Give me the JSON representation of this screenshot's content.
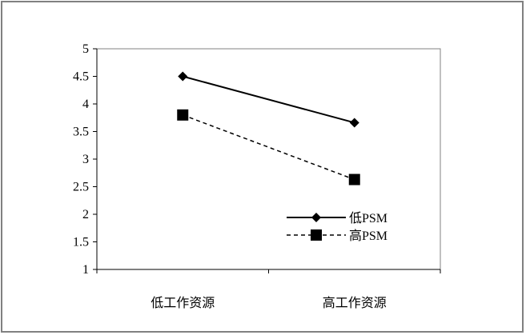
{
  "chart_data": {
    "type": "line",
    "categories": [
      "低工作资源",
      "高工作资源"
    ],
    "series": [
      {
        "name": "低PSM",
        "values": [
          4.5,
          3.66
        ],
        "line_style": "solid",
        "marker": "diamond",
        "color": "#000000"
      },
      {
        "name": "高PSM",
        "values": [
          3.8,
          2.63
        ],
        "line_style": "dashed",
        "marker": "square",
        "color": "#000000"
      }
    ],
    "y_ticks": [
      "1",
      "1.5",
      "2",
      "2.5",
      "3",
      "3.5",
      "4",
      "4.5",
      "5"
    ],
    "ylim": [
      1,
      5
    ],
    "title": "",
    "xlabel": "",
    "ylabel": "",
    "grid": false,
    "legend_position": "bottom-right"
  }
}
